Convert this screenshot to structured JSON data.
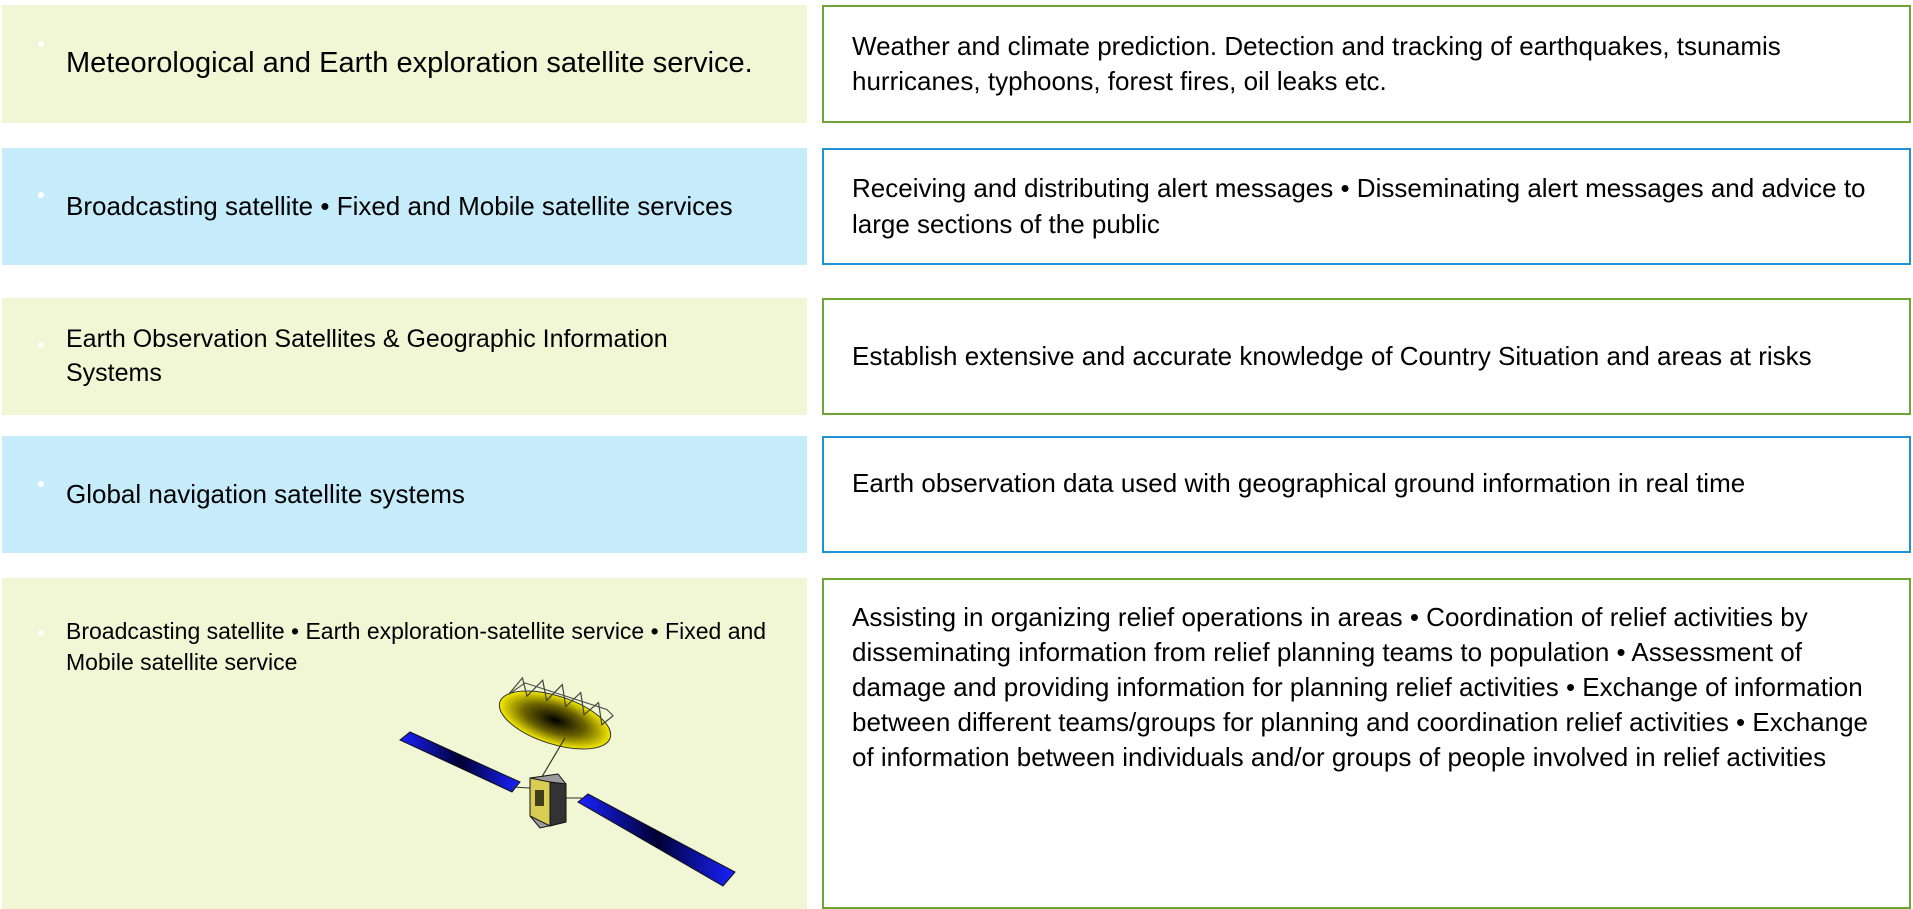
{
  "rows": [
    {
      "service": "Meteorological and Earth exploration satellite service.",
      "application": "Weather and climate prediction. Detection and tracking of earthquakes, tsunamis hurricanes, typhoons, forest fires, oil leaks etc."
    },
    {
      "service": "Broadcasting  satellite • Fixed and Mobile satellite services",
      "application": "Receiving and distributing alert messages • Disseminating alert messages and advice to large sections of the public"
    },
    {
      "service": "Earth Observation Satellites & Geographic Information Systems",
      "application": "Establish extensive and accurate knowledge of Country Situation and areas at risks"
    },
    {
      "service": "Global navigation satellite systems",
      "application": "Earth observation data used with geographical ground information in real time"
    },
    {
      "service": "Broadcasting satellite • Earth exploration-satellite service • Fixed and Mobile satellite service",
      "application": "Assisting in organizing relief operations in areas • Coordination of relief activities by disseminating information from relief planning teams to population • Assessment of damage and providing information for planning relief activities • Exchange of information between different teams/groups for planning and coordination relief activities • Exchange of information between individuals and/or groups of people involved in relief activities"
    }
  ]
}
